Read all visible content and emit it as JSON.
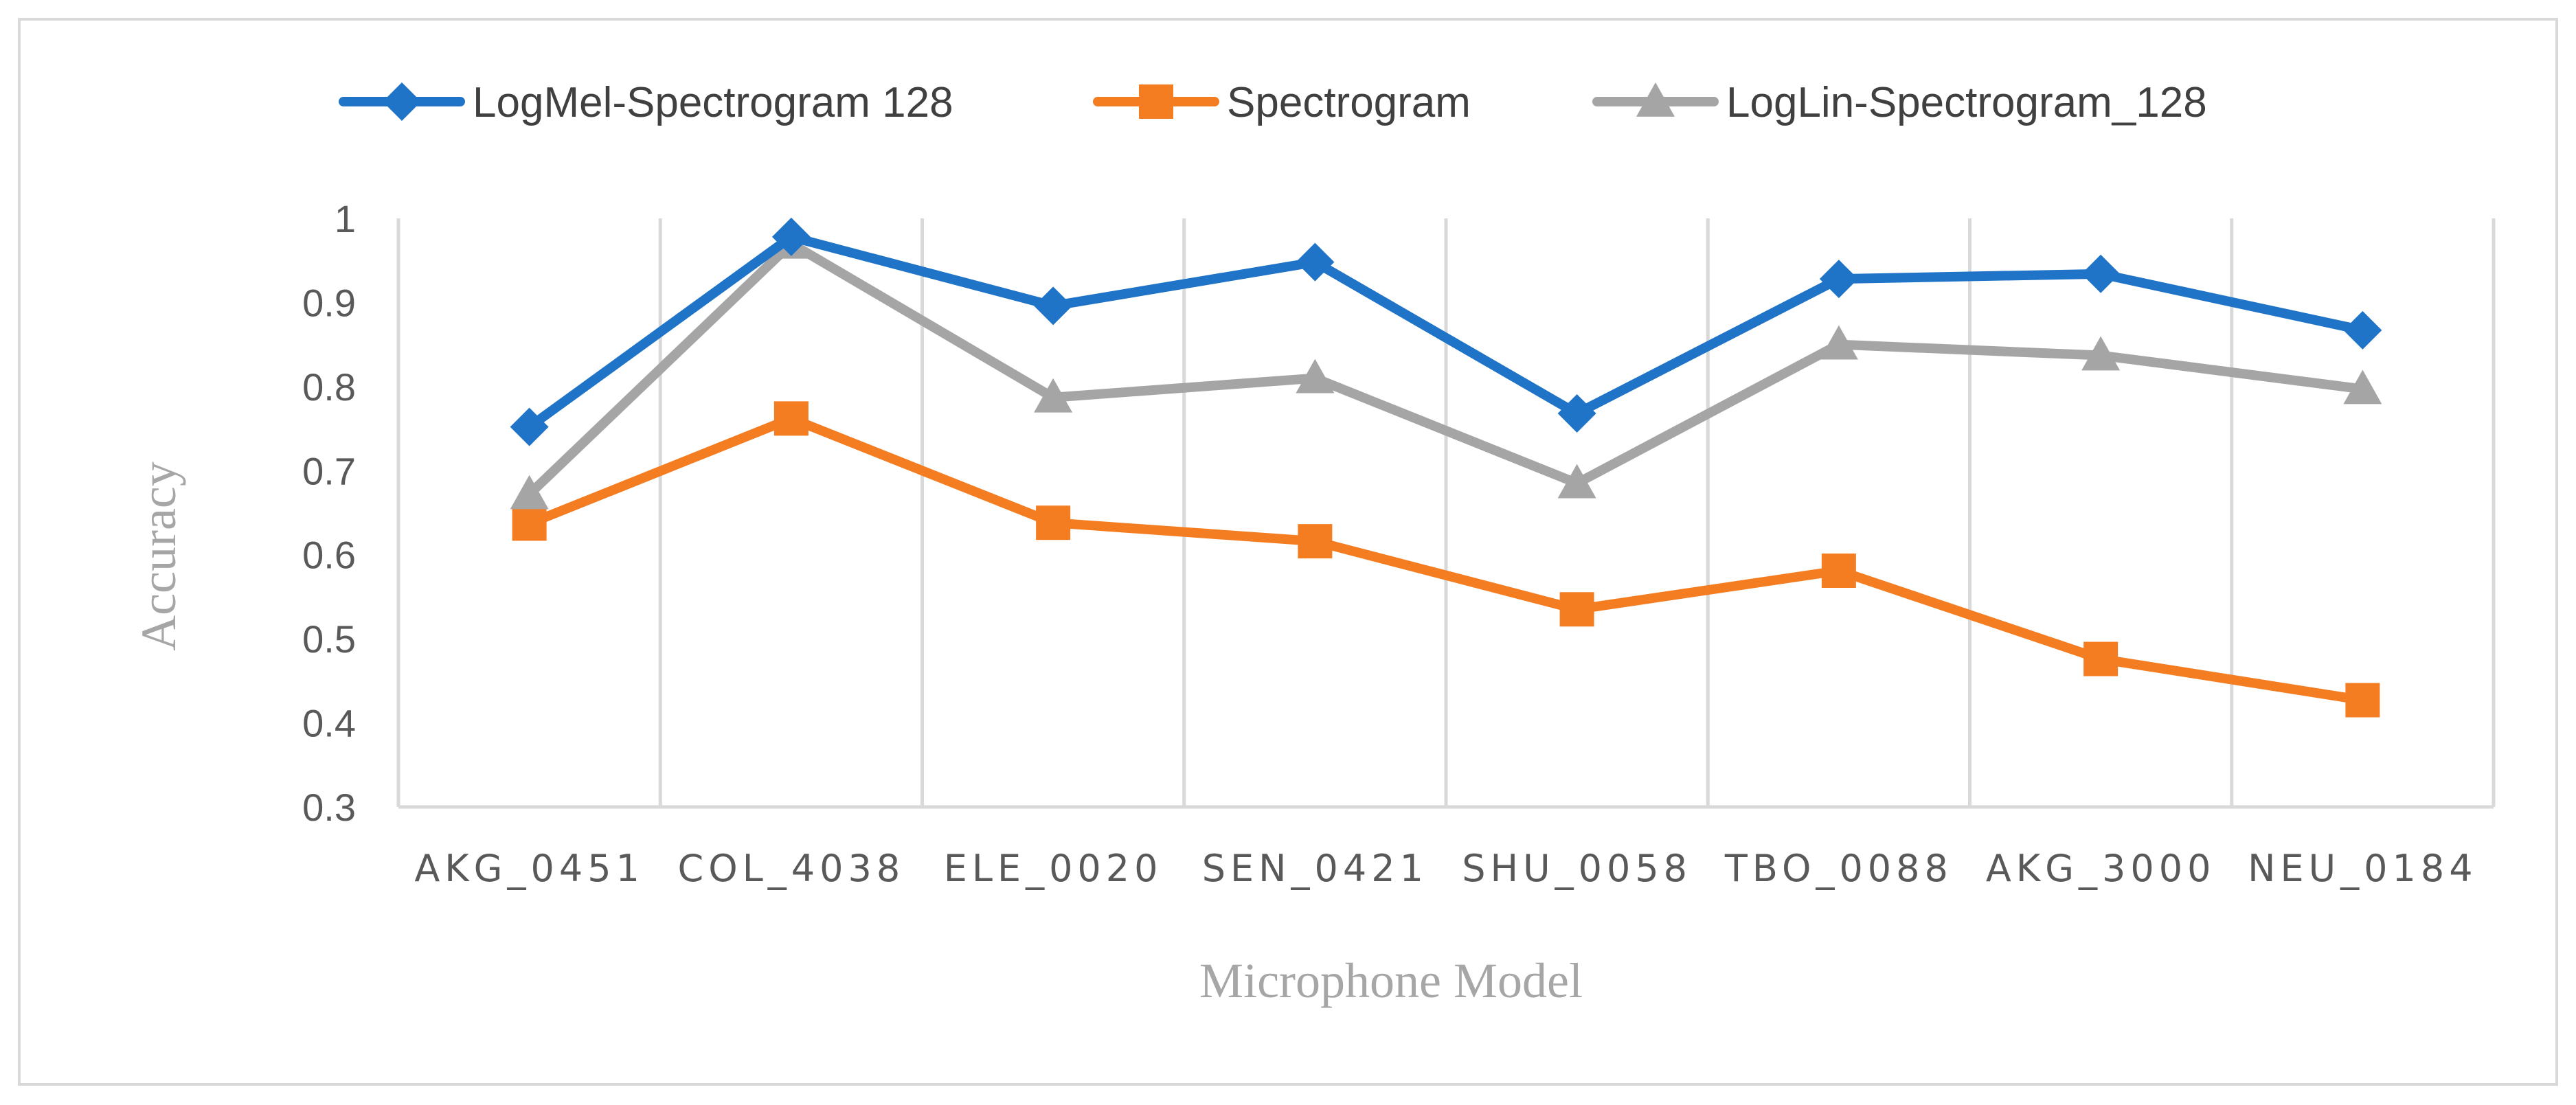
{
  "chart_data": {
    "type": "line",
    "title": "",
    "xlabel": "Microphone Model",
    "ylabel": "Accuracy",
    "categories": [
      "AKG_0451",
      "COL_4038",
      "ELE_0020",
      "SEN_0421",
      "SHU_0058",
      "TBO_0088",
      "AKG_3000",
      "NEU_0184"
    ],
    "ylim": [
      0.3,
      1.0
    ],
    "yticks": [
      "1",
      "0.9",
      "0.8",
      "0.7",
      "0.6",
      "0.5",
      "0.4",
      "0.3"
    ],
    "grid": "vertical",
    "legend_position": "top",
    "series": [
      {
        "name": "LogMel-Spectrogram 128",
        "color": "#1f74c7",
        "marker": "diamond",
        "values": [
          0.752,
          0.978,
          0.896,
          0.948,
          0.768,
          0.928,
          0.934,
          0.867
        ]
      },
      {
        "name": "Spectrogram",
        "color": "#f47d22",
        "marker": "square",
        "values": [
          0.637,
          0.762,
          0.638,
          0.616,
          0.535,
          0.581,
          0.476,
          0.427
        ]
      },
      {
        "name": "LogLin-Spectrogram_128",
        "color": "#a5a5a5",
        "marker": "triangle",
        "values": [
          0.672,
          0.97,
          0.787,
          0.81,
          0.685,
          0.85,
          0.837,
          0.797
        ]
      }
    ]
  }
}
